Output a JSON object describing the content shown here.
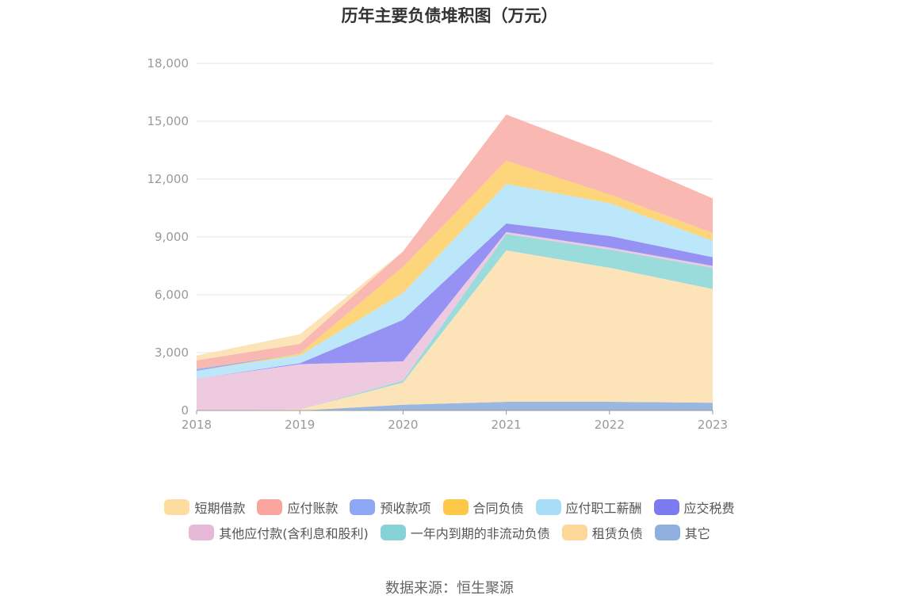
{
  "chart_data": {
    "type": "area",
    "stacked": true,
    "title": "历年主要负债堆积图（万元）",
    "x": [
      "2018",
      "2019",
      "2020",
      "2021",
      "2022",
      "2023"
    ],
    "ylim": [
      0,
      18000
    ],
    "yticks": [
      "0",
      "3,000",
      "6,000",
      "9,000",
      "12,000",
      "15,000",
      "18,000"
    ],
    "grid": true,
    "legend_position": "bottom",
    "series": [
      {
        "name": "其它",
        "color": "#8fb0dc",
        "values": [
          0,
          0,
          300,
          450,
          450,
          400
        ]
      },
      {
        "name": "租赁负债",
        "color": "#fde1b0",
        "values": [
          0,
          50,
          1150,
          7850,
          6950,
          5900
        ]
      },
      {
        "name": "一年内到期的非流动负债",
        "color": "#8fd8d8",
        "values": [
          0,
          0,
          100,
          850,
          950,
          1100
        ]
      },
      {
        "name": "其他应付款(含利息和股利)",
        "color": "#ecc4de",
        "values": [
          1650,
          2350,
          1000,
          100,
          100,
          100
        ]
      },
      {
        "name": "应交税费",
        "color": "#8b86f2",
        "values": [
          0,
          50,
          2150,
          450,
          600,
          450
        ]
      },
      {
        "name": "应付职工薪酬",
        "color": "#b5e3f9",
        "values": [
          400,
          400,
          1400,
          2050,
          1700,
          850
        ]
      },
      {
        "name": "合同负债",
        "color": "#fdd06b",
        "values": [
          0,
          100,
          1350,
          1200,
          450,
          400
        ]
      },
      {
        "name": "预收款项",
        "color": "#8ea6f6",
        "values": [
          100,
          0,
          0,
          0,
          0,
          0
        ]
      },
      {
        "name": "应付账款",
        "color": "#f8b1aa",
        "values": [
          450,
          500,
          800,
          2400,
          2100,
          1800
        ]
      },
      {
        "name": "短期借款",
        "color": "#fde1b0",
        "values": [
          250,
          500,
          0,
          0,
          0,
          0
        ]
      }
    ]
  },
  "legend": {
    "row1": [
      {
        "name": "短期借款",
        "color": "#fddca0"
      },
      {
        "name": "应付账款",
        "color": "#f9a59d"
      },
      {
        "name": "预收款项",
        "color": "#8ea6f6"
      },
      {
        "name": "合同负债",
        "color": "#fdc845"
      },
      {
        "name": "应付职工薪酬",
        "color": "#a8ddf7"
      },
      {
        "name": "应交税费",
        "color": "#7b7bef"
      }
    ],
    "row2": [
      {
        "name": "其他应付款(含利息和股利)",
        "color": "#e6b8d8"
      },
      {
        "name": "一年内到期的非流动负债",
        "color": "#86d3d6"
      },
      {
        "name": "租赁负债",
        "color": "#fdd69a"
      },
      {
        "name": "其它",
        "color": "#8fb0dc"
      }
    ]
  },
  "source": "数据来源：恒生聚源"
}
